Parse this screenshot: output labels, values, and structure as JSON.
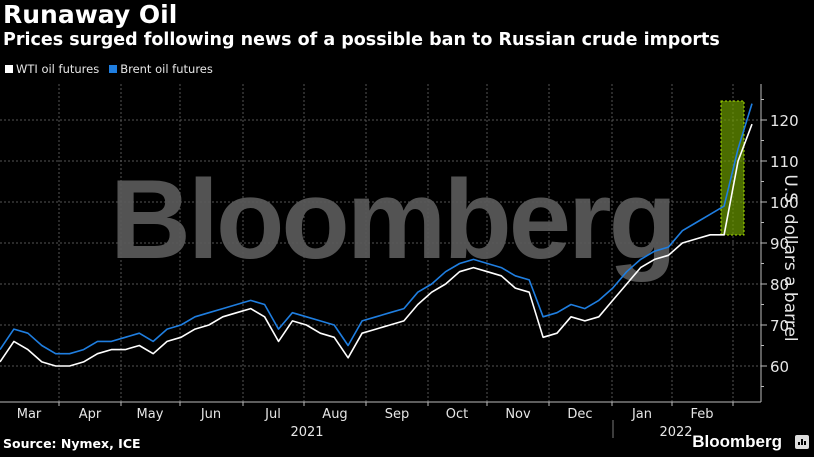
{
  "header": {
    "title": "Runaway Oil",
    "subtitle": "Prices surged following news of a possible ban to Russian crude imports"
  },
  "legend": [
    {
      "label": "WTI oil futures",
      "color": "#ffffff"
    },
    {
      "label": "Brent oil futures",
      "color": "#1f7ee0"
    }
  ],
  "footer": {
    "source": "Source: Nymex, ICE",
    "brand": "Bloomberg"
  },
  "watermark": "Bloomberg",
  "chart_data": {
    "type": "line",
    "title": "Runaway Oil",
    "subtitle": "Prices surged following news of a possible ban to Russian crude imports",
    "xlabel": "",
    "ylabel": "U.S. dollars a barrel",
    "ylim": [
      52,
      128
    ],
    "yticks": [
      60,
      70,
      80,
      90,
      100,
      110,
      120
    ],
    "x_tick_labels": [
      "Mar",
      "Apr",
      "May",
      "Jun",
      "Jul",
      "Aug",
      "Sep",
      "Oct",
      "Nov",
      "Dec",
      "Jan",
      "Feb"
    ],
    "year_labels": [
      {
        "label": "2021",
        "at": "Aug-Sep"
      },
      {
        "label": "2022",
        "at": "Jan-Feb"
      }
    ],
    "grid": true,
    "legend_position": "top-left",
    "highlight": {
      "description": "Green shaded box over late Feb - early Mar 2022 surge",
      "y_range": [
        92,
        124
      ],
      "color": "#7fbf00"
    },
    "x": [
      "2021-03-01",
      "2021-03-08",
      "2021-03-15",
      "2021-03-22",
      "2021-03-29",
      "2021-04-05",
      "2021-04-12",
      "2021-04-19",
      "2021-04-26",
      "2021-05-03",
      "2021-05-10",
      "2021-05-17",
      "2021-05-24",
      "2021-05-31",
      "2021-06-07",
      "2021-06-14",
      "2021-06-21",
      "2021-06-28",
      "2021-07-05",
      "2021-07-12",
      "2021-07-19",
      "2021-07-26",
      "2021-08-02",
      "2021-08-09",
      "2021-08-16",
      "2021-08-23",
      "2021-08-30",
      "2021-09-06",
      "2021-09-13",
      "2021-09-20",
      "2021-09-27",
      "2021-10-04",
      "2021-10-11",
      "2021-10-18",
      "2021-10-25",
      "2021-11-01",
      "2021-11-08",
      "2021-11-15",
      "2021-11-22",
      "2021-11-29",
      "2021-12-06",
      "2021-12-13",
      "2021-12-20",
      "2021-12-27",
      "2022-01-03",
      "2022-01-10",
      "2022-01-17",
      "2022-01-24",
      "2022-01-31",
      "2022-02-07",
      "2022-02-14",
      "2022-02-21",
      "2022-02-28",
      "2022-03-03",
      "2022-03-07"
    ],
    "series": [
      {
        "name": "WTI oil futures",
        "color": "#ffffff",
        "values": [
          61,
          66,
          64,
          61,
          60,
          60,
          61,
          63,
          64,
          64,
          65,
          63,
          66,
          67,
          69,
          70,
          72,
          73,
          74,
          72,
          66,
          71,
          70,
          68,
          67,
          62,
          68,
          69,
          70,
          71,
          75,
          78,
          80,
          83,
          84,
          83,
          82,
          79,
          78,
          67,
          68,
          72,
          71,
          72,
          76,
          80,
          84,
          86,
          87,
          90,
          91,
          92,
          92,
          110,
          119
        ]
      },
      {
        "name": "Brent oil futures",
        "color": "#1f7ee0",
        "values": [
          64,
          69,
          68,
          65,
          63,
          63,
          64,
          66,
          66,
          67,
          68,
          66,
          69,
          70,
          72,
          73,
          74,
          75,
          76,
          75,
          69,
          73,
          72,
          71,
          70,
          65,
          71,
          72,
          73,
          74,
          78,
          80,
          83,
          85,
          86,
          85,
          84,
          82,
          81,
          72,
          73,
          75,
          74,
          76,
          79,
          83,
          86,
          88,
          89,
          93,
          95,
          97,
          99,
          113,
          124
        ]
      }
    ]
  }
}
